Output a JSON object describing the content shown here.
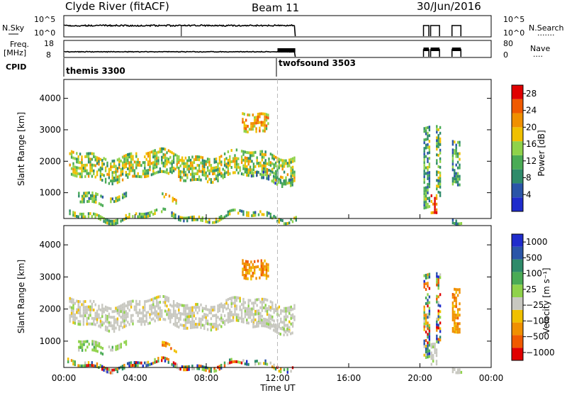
{
  "header": {
    "station": "Clyde River (fitACF)",
    "beam": "Beam 11",
    "date": "30/Jun/2016"
  },
  "strip_labels": {
    "nsky": "N.Sky",
    "nsearch": "N.Search",
    "nsearch_dots": ".......",
    "freq": "Freq.",
    "mhz": "[MHz]",
    "nave": "Nave",
    "nave_dots": "....",
    "cpid": "CPID"
  },
  "strip_ticks": {
    "nsky_left": [
      "10^5",
      "10^0"
    ],
    "nsky_right": [
      "10^5",
      "10^0"
    ],
    "freq_left": [
      "18",
      "8"
    ],
    "freq_right": [
      "80",
      "0"
    ]
  },
  "cpid_marks": [
    {
      "time": 0,
      "label": "themis 3300"
    },
    {
      "time": 12.0,
      "label": "twofsound 3503"
    }
  ],
  "colors": {
    "power": [
      "#1f2ccc",
      "#2a55a8",
      "#2e8b6a",
      "#4aab55",
      "#8fd24a",
      "#f0c000",
      "#f09000",
      "#f05a00",
      "#e00000"
    ],
    "velocity": [
      "#1f2ccc",
      "#2a55a8",
      "#2e8b6a",
      "#4aab55",
      "#8fd24a",
      "#c8c8c0",
      "#f0c000",
      "#f09000",
      "#f05a00",
      "#e00000"
    ]
  },
  "chart_data": [
    {
      "type": "heatmap",
      "name": "Power",
      "ylabel": "Slant Range [km]",
      "xlim": [
        0,
        24
      ],
      "ylim": [
        180,
        4600
      ],
      "yticks": [
        "1000",
        "2000",
        "3000",
        "4000"
      ],
      "colorbar_label": "Power [dB]",
      "colorbar_ticks": [
        "4",
        "8",
        "12",
        "16",
        "20",
        "24",
        "28"
      ],
      "value_range": [
        0,
        30
      ]
    },
    {
      "type": "heatmap",
      "name": "Velocity",
      "ylabel": "Slant Range [km]",
      "xlabel": "Time UT",
      "xlim": [
        0,
        24
      ],
      "xticks": [
        "00:00",
        "04:00",
        "08:00",
        "12:00",
        "16:00",
        "20:00",
        "00:00"
      ],
      "ylim": [
        180,
        4600
      ],
      "yticks": [
        "1000",
        "2000",
        "3000",
        "4000"
      ],
      "colorbar_label": "Velocity [m s⁻¹]",
      "colorbar_ticks": [
        "1000",
        "500",
        "100",
        "25",
        "−25",
        "−100",
        "−500",
        "−1000"
      ],
      "value_range": [
        -1000,
        1000
      ]
    }
  ],
  "scatter_regions": [
    {
      "t0": 0.3,
      "t1": 13.0,
      "r0": 1520,
      "r1": 2250,
      "power": 15,
      "vel": "low"
    },
    {
      "t0": 0.2,
      "t1": 13.0,
      "r0": 180,
      "r1": 340,
      "power": 12,
      "vel": "mixed"
    },
    {
      "t0": 0.8,
      "t1": 2.2,
      "r0": 700,
      "r1": 1000,
      "power": 10,
      "vel": "pos"
    },
    {
      "t0": 2.5,
      "t1": 3.5,
      "r0": 880,
      "r1": 1050,
      "power": 11,
      "vel": "pos"
    },
    {
      "t0": 5.5,
      "t1": 6.3,
      "r0": 680,
      "r1": 820,
      "power": 18,
      "vel": "neg"
    },
    {
      "t0": 10.0,
      "t1": 11.5,
      "r0": 2850,
      "r1": 3450,
      "power": 20,
      "vel": "neg"
    },
    {
      "t0": 10.5,
      "t1": 12.8,
      "r0": 1380,
      "r1": 1600,
      "power": 8,
      "vel": "low"
    },
    {
      "t0": 20.2,
      "t1": 20.5,
      "r0": 400,
      "r1": 3000,
      "power": 10,
      "vel": "mixed"
    },
    {
      "t0": 20.6,
      "t1": 20.9,
      "r0": 180,
      "r1": 800,
      "power": 26,
      "vel": "low"
    },
    {
      "t0": 20.9,
      "t1": 21.1,
      "r0": 800,
      "r1": 3000,
      "power": 12,
      "vel": "mixed"
    },
    {
      "t0": 21.8,
      "t1": 22.2,
      "r0": 1400,
      "r1": 2800,
      "power": 10,
      "vel": "neg"
    },
    {
      "t0": 21.8,
      "t1": 22.3,
      "r0": 180,
      "r1": 300,
      "power": 9,
      "vel": "low"
    }
  ]
}
